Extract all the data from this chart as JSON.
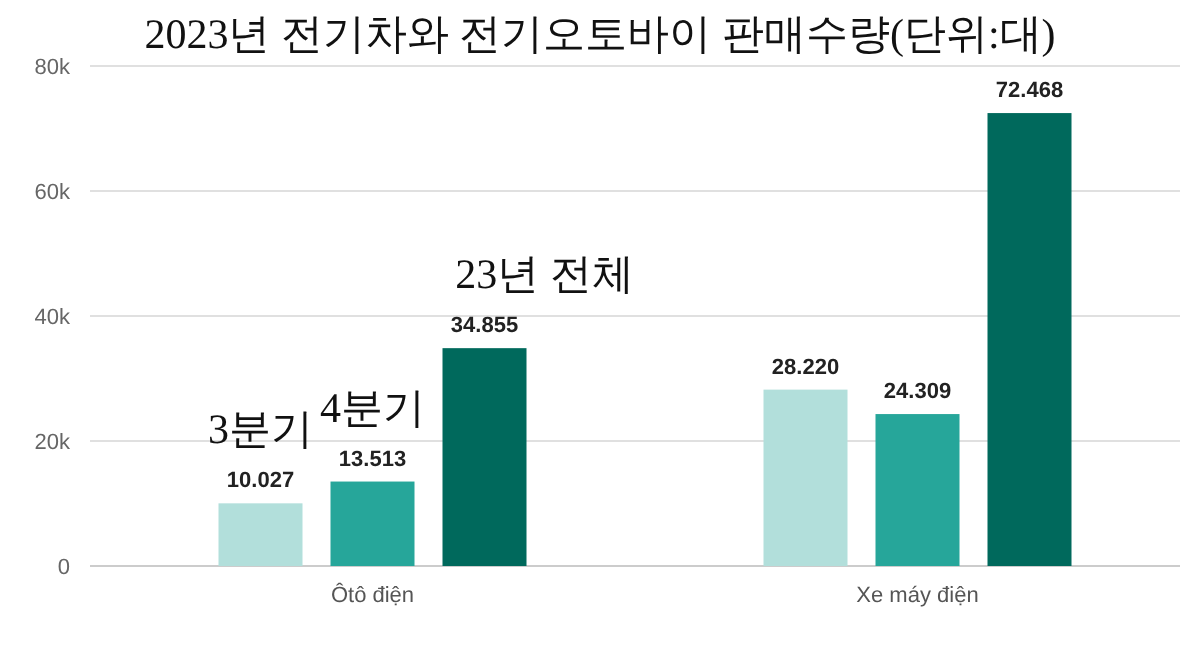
{
  "chart_data": {
    "type": "bar",
    "title": "2023년 전기차와 전기오토바이 판매수량(단위:대)",
    "categories": [
      "Ôtô điện",
      "Xe máy điện"
    ],
    "series": [
      {
        "name": "3분기",
        "color": "#b2dfdb",
        "values": [
          10027,
          28220
        ],
        "value_labels": [
          "10.027",
          "28.220"
        ]
      },
      {
        "name": "4분기",
        "color": "#26a69a",
        "values": [
          13513,
          24309
        ],
        "value_labels": [
          "13.513",
          "24.309"
        ]
      },
      {
        "name": "23년 전체",
        "color": "#00695c",
        "values": [
          34855,
          72468
        ],
        "value_labels": [
          "34.855",
          "72.468"
        ]
      }
    ],
    "ylim": [
      0,
      80000
    ],
    "yticks": [
      {
        "value": 0,
        "label": "0"
      },
      {
        "value": 20000,
        "label": "20k"
      },
      {
        "value": 40000,
        "label": "40k"
      },
      {
        "value": 60000,
        "label": "60k"
      },
      {
        "value": 80000,
        "label": "80k"
      }
    ],
    "grid": "y"
  }
}
